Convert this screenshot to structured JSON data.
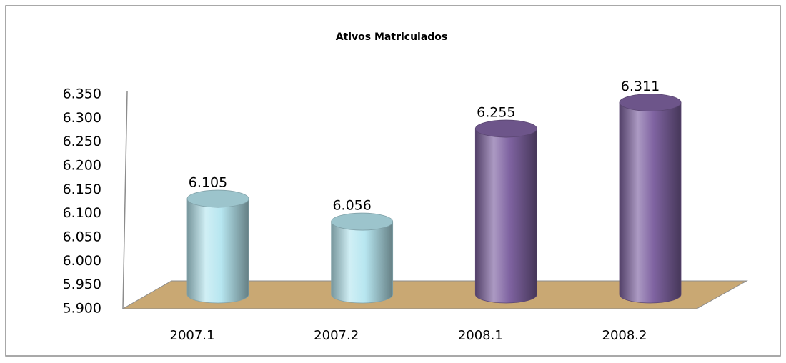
{
  "chart_data": {
    "type": "cylinder",
    "title": "Ativos Matriculados",
    "categories": [
      "2007.1",
      "2007.2",
      "2008.1",
      "2008.2"
    ],
    "values": [
      6105,
      6056,
      6255,
      6311
    ],
    "value_labels": [
      "6.105",
      "6.056",
      "6.255",
      "6.311"
    ],
    "colors": [
      "#b7e6f0",
      "#b7e6f0",
      "#8064a2",
      "#8064a2"
    ],
    "ylim": [
      5900,
      6350
    ],
    "yticks": [
      {
        "value": 5900,
        "label": "5.900"
      },
      {
        "value": 5950,
        "label": "5.950"
      },
      {
        "value": 6000,
        "label": "6.000"
      },
      {
        "value": 6050,
        "label": "6.050"
      },
      {
        "value": 6100,
        "label": "6.100"
      },
      {
        "value": 6150,
        "label": "6.150"
      },
      {
        "value": 6200,
        "label": "6.200"
      },
      {
        "value": 6250,
        "label": "6.250"
      },
      {
        "value": 6300,
        "label": "6.300"
      },
      {
        "value": 6350,
        "label": "6.350"
      }
    ],
    "grid": false
  }
}
